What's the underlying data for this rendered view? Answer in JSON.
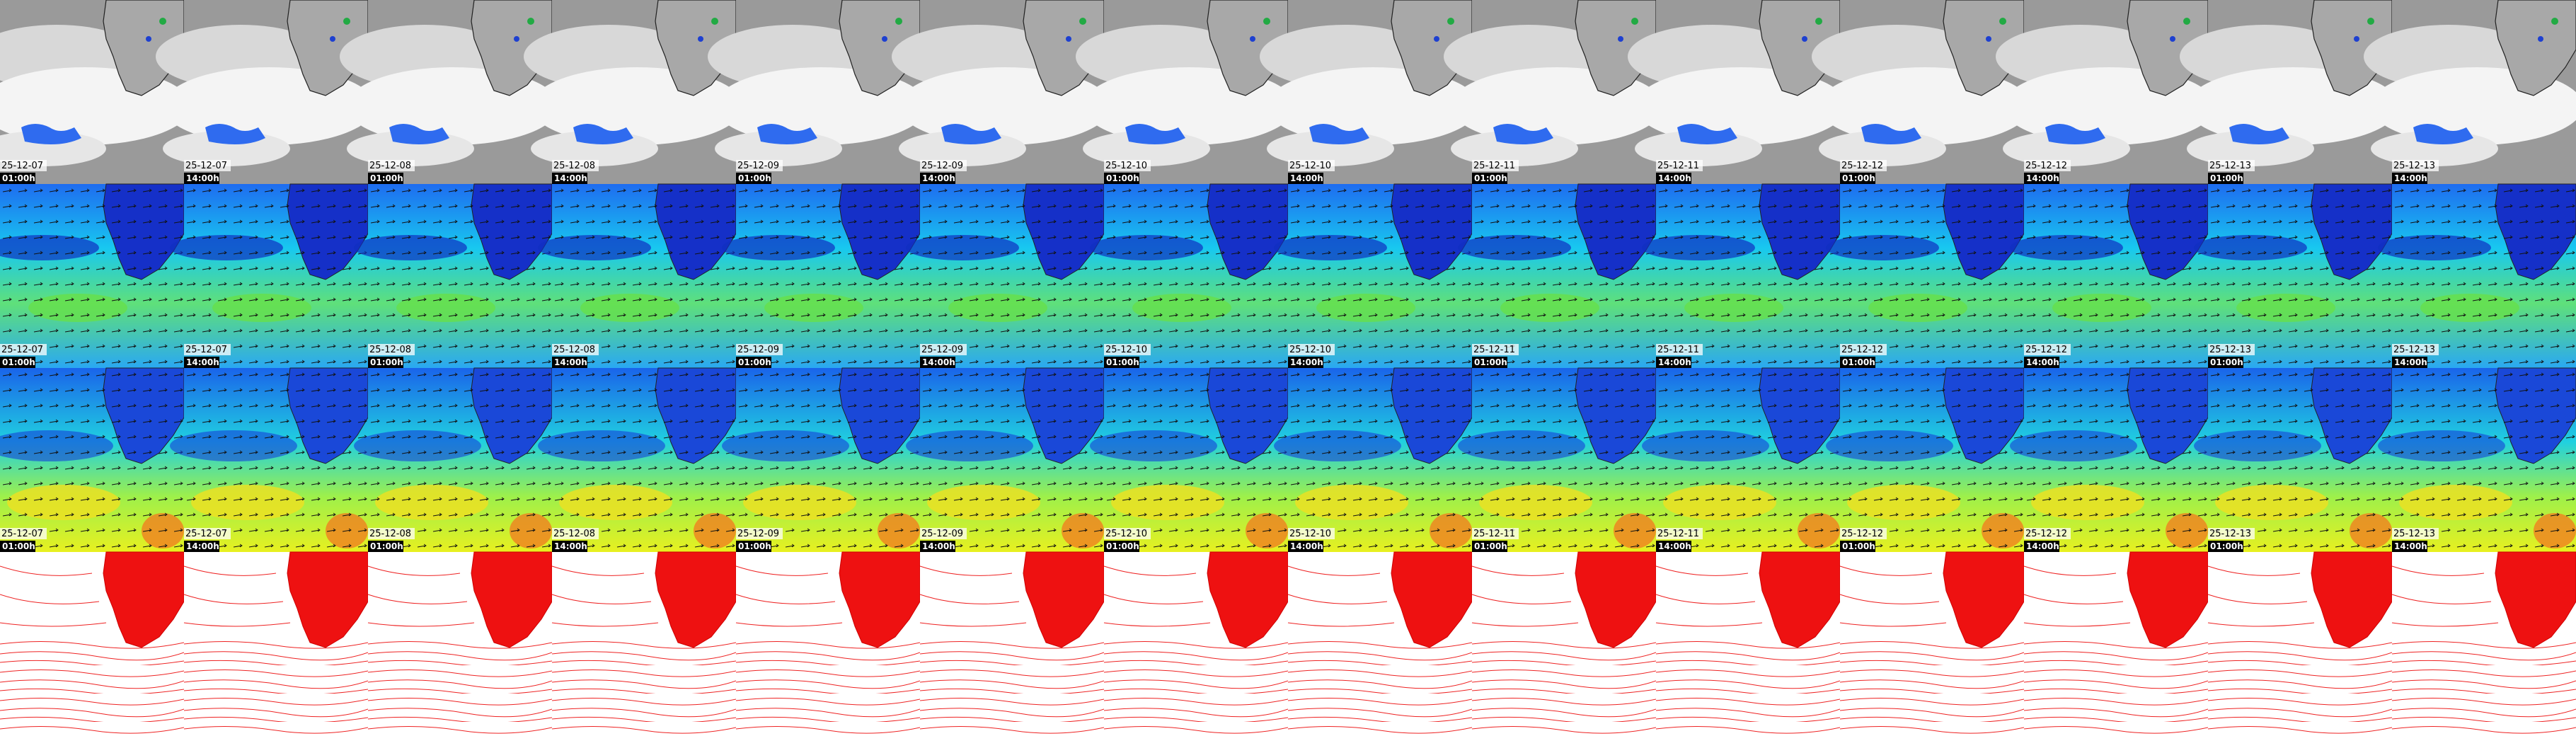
{
  "columns": [
    {
      "date": "25-12-07",
      "time": "01:00h"
    },
    {
      "date": "25-12-07",
      "time": "14:00h"
    },
    {
      "date": "25-12-08",
      "time": "01:00h"
    },
    {
      "date": "25-12-08",
      "time": "14:00h"
    },
    {
      "date": "25-12-09",
      "time": "01:00h"
    },
    {
      "date": "25-12-09",
      "time": "14:00h"
    },
    {
      "date": "25-12-10",
      "time": "01:00h"
    },
    {
      "date": "25-12-10",
      "time": "14:00h"
    },
    {
      "date": "25-12-11",
      "time": "01:00h"
    },
    {
      "date": "25-12-11",
      "time": "14:00h"
    },
    {
      "date": "25-12-12",
      "time": "01:00h"
    },
    {
      "date": "25-12-12",
      "time": "14:00h"
    },
    {
      "date": "25-12-13",
      "time": "01:00h"
    },
    {
      "date": "25-12-13",
      "time": "14:00h"
    }
  ]
}
